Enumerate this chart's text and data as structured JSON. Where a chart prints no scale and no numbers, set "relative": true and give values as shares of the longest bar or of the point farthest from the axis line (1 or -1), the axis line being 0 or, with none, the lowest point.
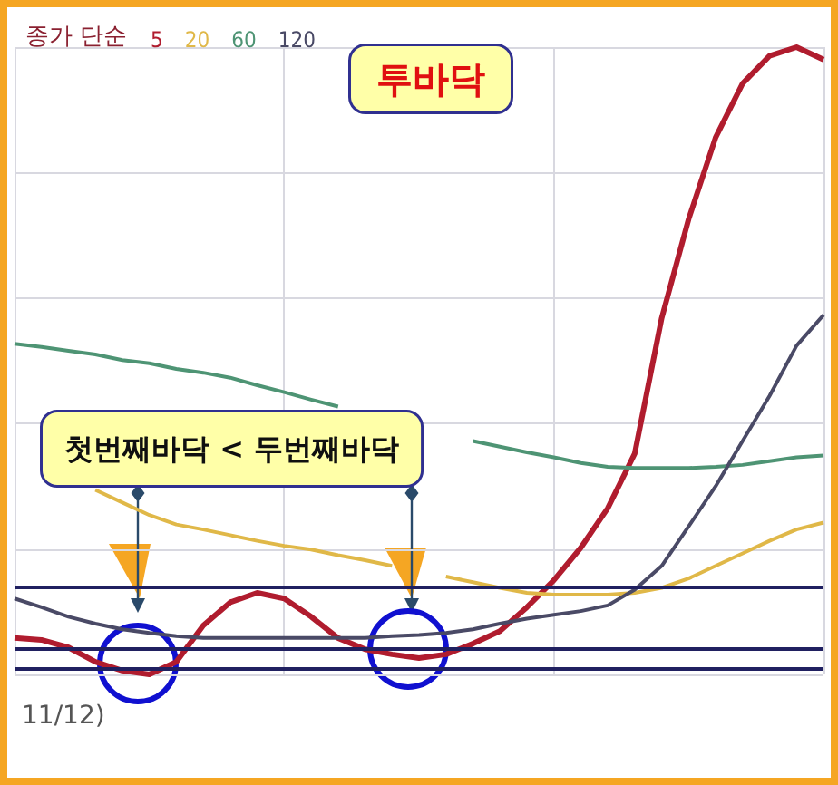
{
  "chart_data": {
    "type": "line",
    "relative": true,
    "grid": true,
    "legend": "top left",
    "legend_title": "종가 단순",
    "marker": "none",
    "categories": [
      null,
      null,
      null,
      null,
      null,
      null,
      null,
      null,
      null,
      null,
      null,
      null,
      null,
      null,
      null,
      null,
      null,
      null,
      null,
      null,
      null,
      null,
      null,
      null,
      null,
      null,
      null,
      null,
      null,
      null,
      null
    ],
    "series": [
      {
        "name": "5",
        "color": "#b01c2e",
        "values": [
          0.058,
          0.055,
          0.043,
          0.02,
          0.006,
          0,
          0.02,
          0.078,
          0.115,
          0.13,
          0.121,
          0.092,
          0.058,
          0.04,
          0.032,
          0.026,
          0.032,
          0.049,
          0.069,
          0.107,
          0.15,
          0.202,
          0.265,
          0.352,
          0.568,
          0.726,
          0.856,
          0.942,
          0.986,
          1,
          0.98
        ]
      },
      {
        "name": "20",
        "color": "#e0b848",
        "values": [
          null,
          null,
          null,
          0.294,
          0.274,
          0.254,
          0.239,
          0.231,
          0.222,
          0.213,
          0.205,
          0.199,
          0.19,
          0.182,
          0.173,
          null,
          0.156,
          0.147,
          0.138,
          0.13,
          0.127,
          0.127,
          0.127,
          0.13,
          0.138,
          0.153,
          0.173,
          0.193,
          0.213,
          0.231,
          0.242
        ]
      },
      {
        "name": "60",
        "color": "#4e9474",
        "values": [
          0.527,
          0.522,
          0.516,
          0.51,
          0.501,
          0.496,
          0.487,
          0.481,
          0.473,
          0.461,
          0.45,
          0.438,
          0.427,
          null,
          null,
          null,
          null,
          0.372,
          0.363,
          0.354,
          0.346,
          0.337,
          0.331,
          0.329,
          0.329,
          0.329,
          0.331,
          0.334,
          0.34,
          0.346,
          0.349
        ]
      },
      {
        "name": "120",
        "color": "#4a4a66",
        "values": [
          0.121,
          0.107,
          0.092,
          0.081,
          0.072,
          0.066,
          0.061,
          0.058,
          0.058,
          0.058,
          0.058,
          0.058,
          0.058,
          0.058,
          0.061,
          0.063,
          0.066,
          0.072,
          0.081,
          0.089,
          0.095,
          0.101,
          0.11,
          0.135,
          0.173,
          0.236,
          0.3,
          0.372,
          0.444,
          0.524,
          0.573
        ]
      }
    ],
    "ref_lines": [
      {
        "axis": "y",
        "value": 0.135,
        "color": "#202060"
      },
      {
        "axis": "y",
        "value": 0.04,
        "color": "#202060"
      },
      {
        "axis": "y",
        "value": 0.009,
        "color": "#202060"
      }
    ],
    "annotations": [
      "투바닥",
      "첫번째바닥 < 두번째바닥",
      "11/12)"
    ]
  }
}
